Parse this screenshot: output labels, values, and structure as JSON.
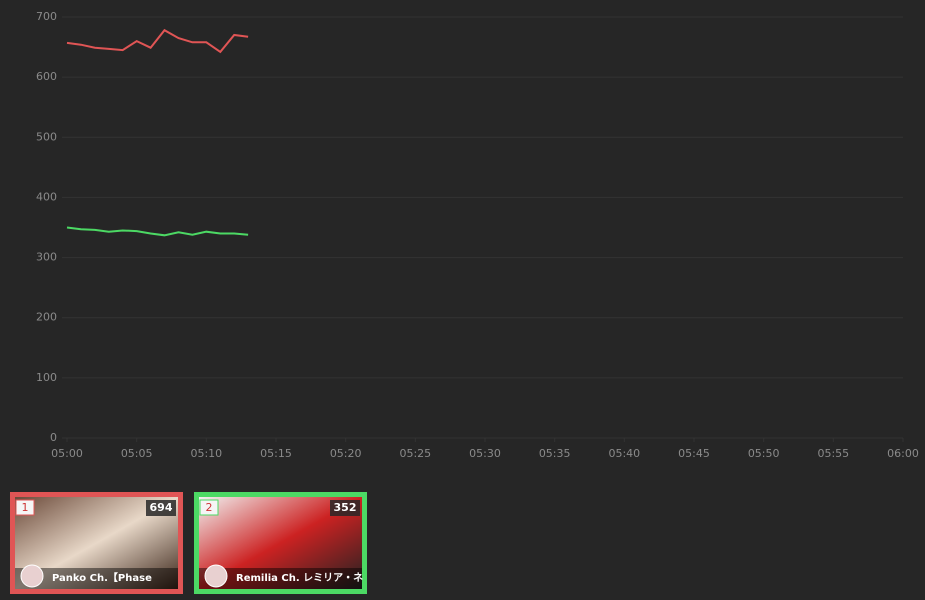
{
  "chart_data": {
    "type": "line",
    "x": [
      "05:00",
      "05:01",
      "05:02",
      "05:03",
      "05:04",
      "05:05",
      "05:06",
      "05:07",
      "05:08",
      "05:09",
      "05:10",
      "05:11",
      "05:12",
      "05:13"
    ],
    "series": [
      {
        "name": "Panko Ch.【Phase",
        "color": "#e05555",
        "values": [
          657,
          654,
          649,
          647,
          645,
          660,
          649,
          678,
          665,
          658,
          658,
          642,
          670,
          667
        ]
      },
      {
        "name": "Remilia Ch. レミリア・ネ",
        "color": "#4cd964",
        "values": [
          350,
          347,
          346,
          343,
          345,
          344,
          340,
          337,
          342,
          338,
          343,
          340,
          340,
          338
        ]
      }
    ],
    "xlim": [
      "05:00",
      "06:00"
    ],
    "xticks": [
      "05:00",
      "05:05",
      "05:10",
      "05:15",
      "05:20",
      "05:25",
      "05:30",
      "05:35",
      "05:40",
      "05:45",
      "05:50",
      "05:55",
      "06:00"
    ],
    "ylim": [
      0,
      700
    ],
    "yticks": [
      0,
      100,
      200,
      300,
      400,
      500,
      600,
      700
    ],
    "grid": true
  },
  "cards": [
    {
      "rank": 1,
      "count": 694
    },
    {
      "rank": 2,
      "count": 352
    }
  ]
}
